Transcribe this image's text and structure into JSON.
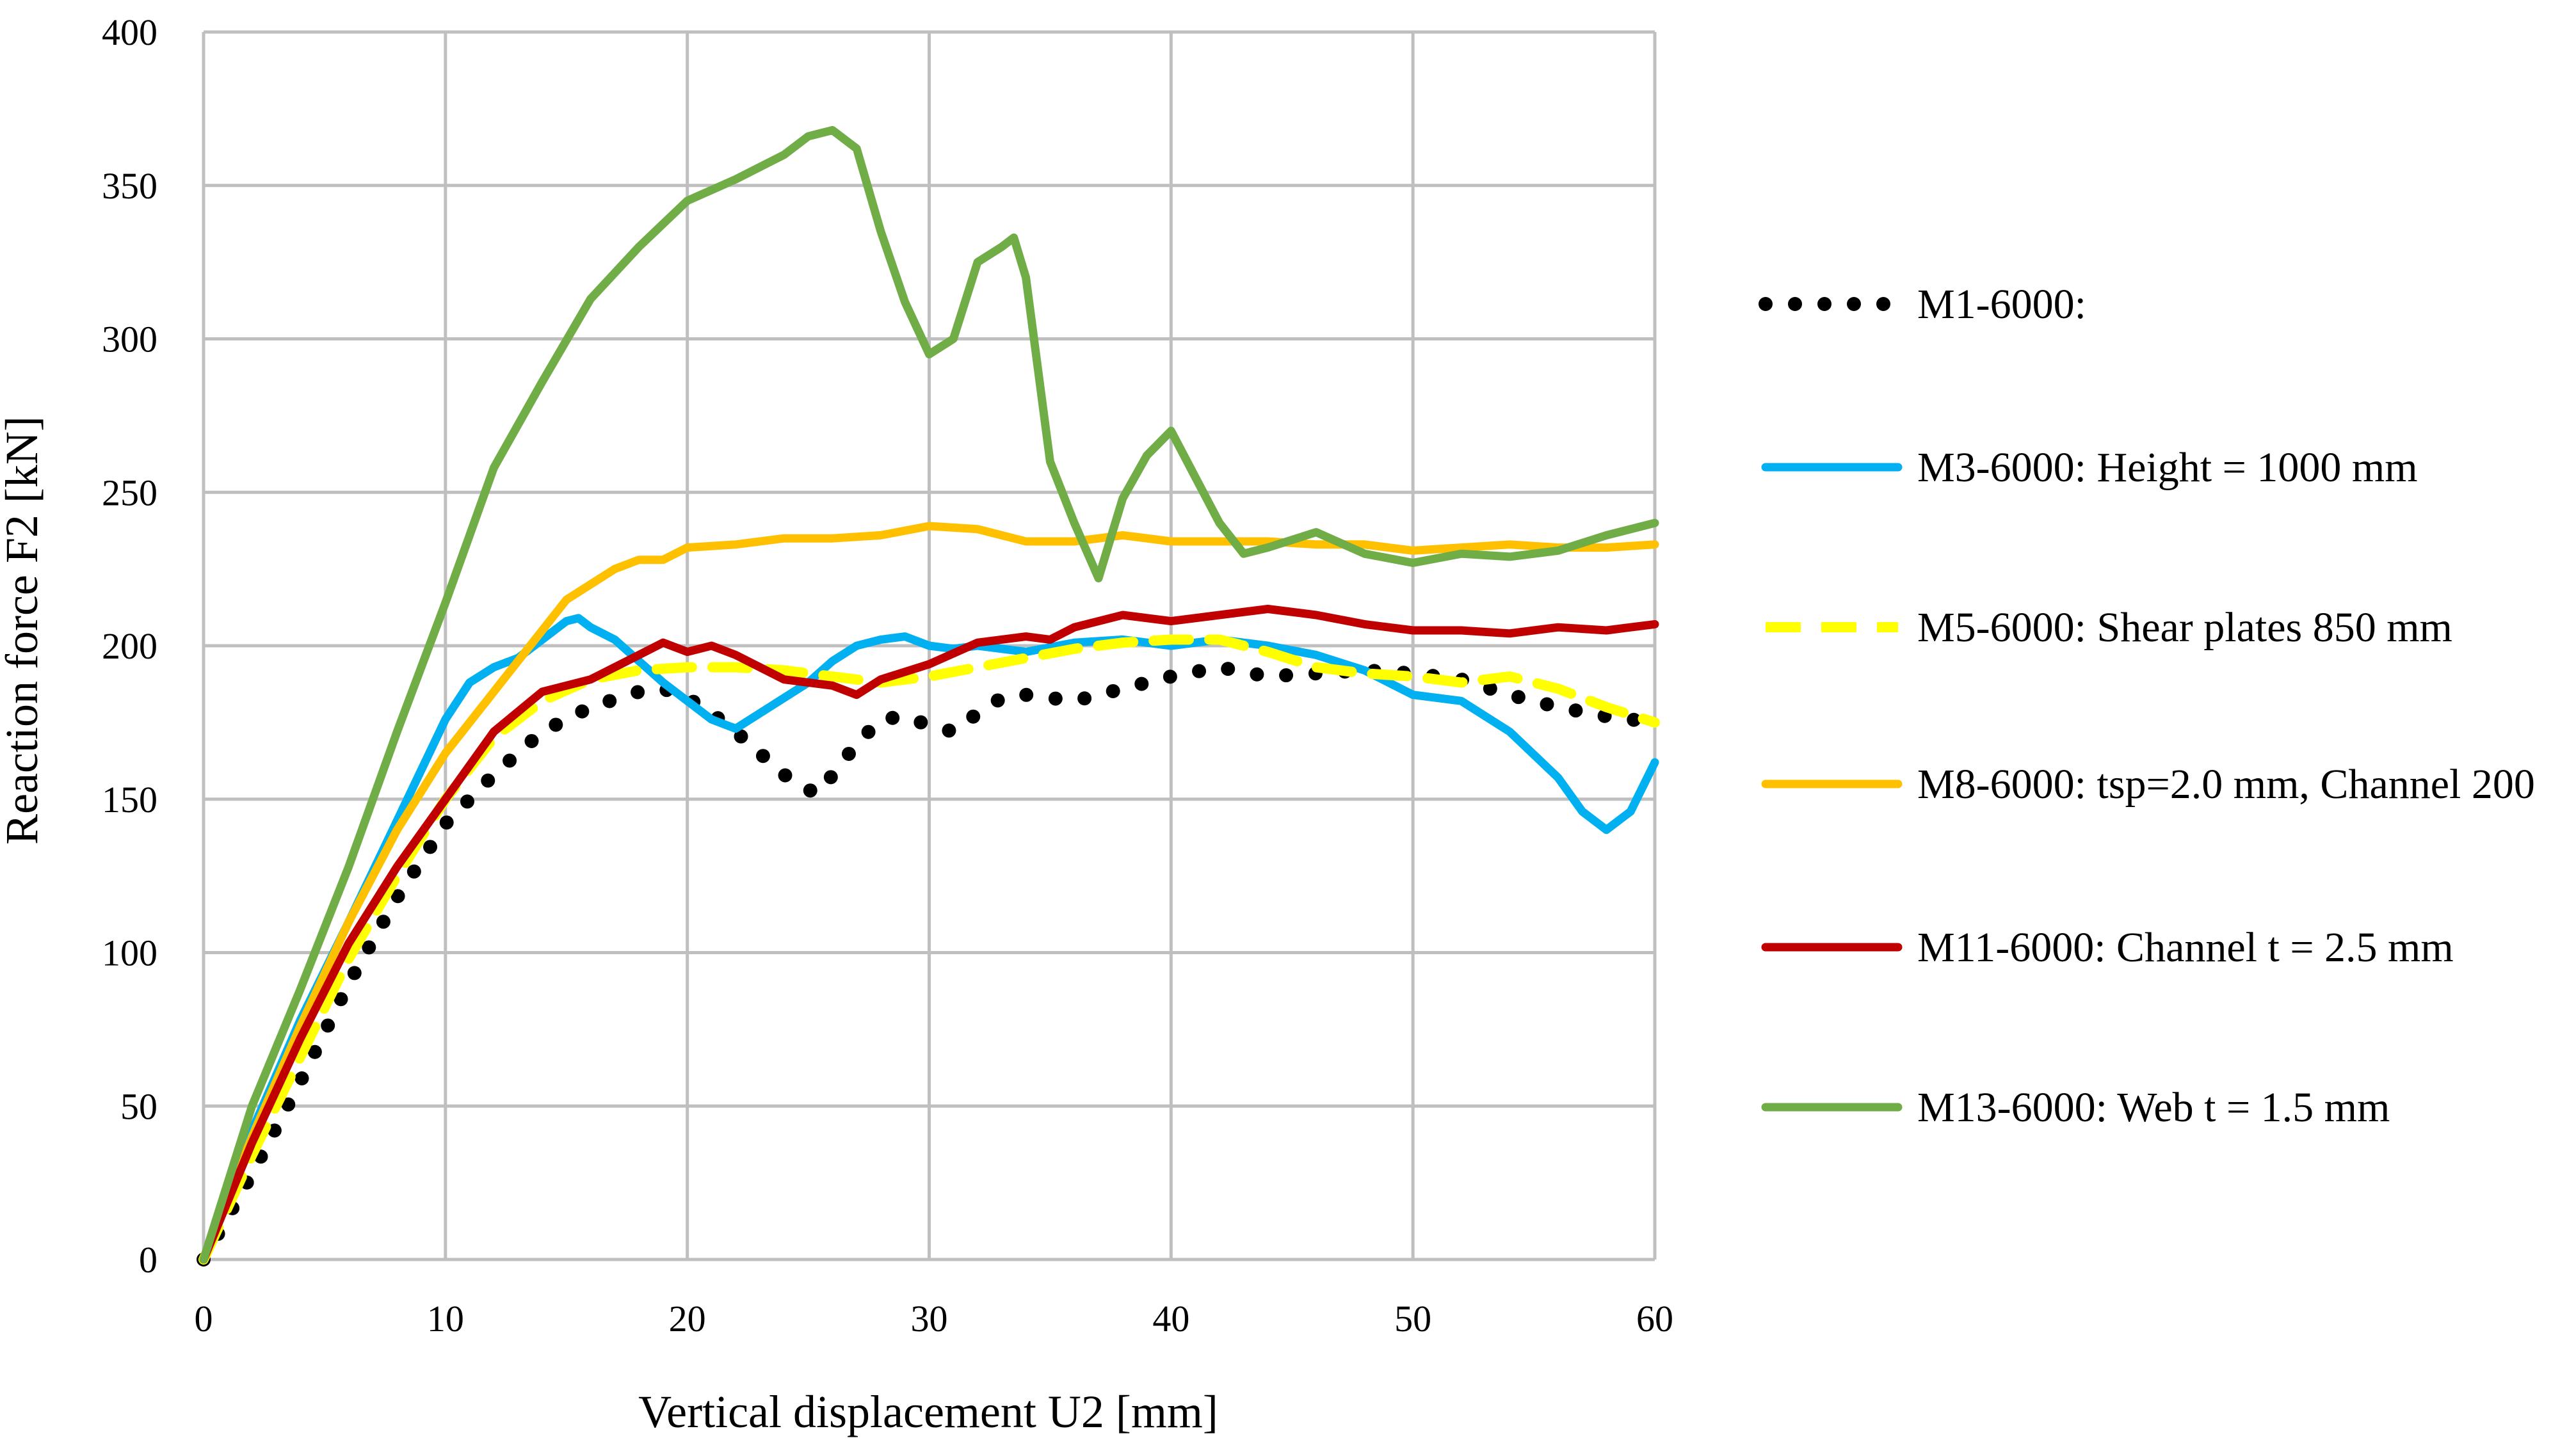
{
  "chart_data": {
    "type": "line",
    "title": "",
    "xlabel": "Vertical displacement U2 [mm]",
    "ylabel": "Reaction force F2 [kN]",
    "xlim": [
      0,
      60
    ],
    "ylim": [
      0,
      400
    ],
    "xticks": [
      0,
      10,
      20,
      30,
      40,
      50,
      60
    ],
    "yticks": [
      0,
      50,
      100,
      150,
      200,
      250,
      300,
      350,
      400
    ],
    "grid": true,
    "legend_position": "right",
    "series": [
      {
        "name": "M1-6000:",
        "color": "#000000",
        "style": "dotted",
        "x": [
          0,
          2,
          4,
          6,
          8,
          10,
          12,
          14,
          16,
          18,
          19,
          20,
          21,
          22,
          23,
          24,
          25,
          25.5,
          26,
          27,
          28,
          29,
          30,
          31,
          32,
          33,
          34,
          36,
          38,
          40,
          42,
          44,
          46,
          48,
          50,
          52,
          54,
          56,
          58,
          60
        ],
        "y": [
          0,
          28,
          58,
          90,
          118,
          142,
          158,
          172,
          180,
          185,
          186,
          183,
          178,
          172,
          165,
          158,
          153,
          152,
          158,
          168,
          176,
          177,
          174,
          172,
          178,
          183,
          184,
          182,
          186,
          190,
          193,
          190,
          191,
          192,
          191,
          189,
          184,
          180,
          177,
          175
        ]
      },
      {
        "name": "M3-6000: Height = 1000 mm",
        "color": "#00b0f0",
        "style": "solid",
        "x": [
          0,
          2,
          4,
          6,
          8,
          10,
          11,
          12,
          13,
          14,
          15,
          15.5,
          16,
          17,
          18,
          19,
          20,
          21,
          22,
          23,
          24,
          25,
          26,
          27,
          28,
          29,
          30,
          31,
          32,
          34,
          36,
          38,
          40,
          42,
          44,
          46,
          48,
          50,
          52,
          54,
          56,
          57,
          58,
          59,
          60
        ],
        "y": [
          0,
          42,
          78,
          110,
          143,
          176,
          188,
          193,
          196,
          202,
          208,
          209,
          206,
          202,
          195,
          188,
          182,
          176,
          173,
          178,
          183,
          188,
          195,
          200,
          202,
          203,
          200,
          199,
          200,
          198,
          201,
          202,
          200,
          202,
          200,
          197,
          192,
          184,
          182,
          172,
          157,
          146,
          140,
          146,
          162
        ]
      },
      {
        "name": "M5-6000: Shear plates 850 mm",
        "color": "#ffff00",
        "style": "dashed",
        "x": [
          0,
          2,
          4,
          6,
          8,
          10,
          12,
          14,
          16,
          18,
          20,
          22,
          24,
          26,
          28,
          30,
          32,
          34,
          36,
          38,
          40,
          42,
          44,
          46,
          48,
          50,
          52,
          54,
          56,
          58,
          60
        ],
        "y": [
          0,
          34,
          66,
          98,
          125,
          150,
          170,
          182,
          189,
          192,
          193,
          193,
          192,
          190,
          188,
          190,
          193,
          196,
          199,
          201,
          202,
          202,
          198,
          193,
          191,
          190,
          188,
          190,
          186,
          180,
          175
        ]
      },
      {
        "name": "M8-6000: tsp=2.0 mm, Channel 200",
        "color": "#ffc000",
        "style": "solid",
        "x": [
          0,
          2,
          4,
          6,
          8,
          10,
          12,
          14,
          15,
          16,
          17,
          18,
          19,
          20,
          22,
          24,
          26,
          28,
          30,
          32,
          34,
          36,
          38,
          40,
          42,
          44,
          46,
          48,
          50,
          52,
          54,
          56,
          58,
          60
        ],
        "y": [
          0,
          40,
          76,
          110,
          140,
          165,
          185,
          205,
          215,
          220,
          225,
          228,
          228,
          232,
          233,
          235,
          235,
          236,
          239,
          238,
          234,
          234,
          236,
          234,
          234,
          234,
          233,
          233,
          231,
          232,
          233,
          232,
          232,
          233
        ]
      },
      {
        "name": "M11-6000: Channel t = 2.5 mm",
        "color": "#c00000",
        "style": "solid",
        "x": [
          0,
          2,
          4,
          6,
          8,
          10,
          12,
          14,
          16,
          18,
          19,
          20,
          21,
          22,
          24,
          26,
          27,
          28,
          30,
          32,
          34,
          35,
          36,
          38,
          40,
          42,
          44,
          46,
          48,
          50,
          52,
          54,
          56,
          58,
          60
        ],
        "y": [
          0,
          38,
          72,
          103,
          128,
          150,
          172,
          185,
          189,
          197,
          201,
          198,
          200,
          197,
          189,
          187,
          184,
          189,
          194,
          201,
          203,
          202,
          206,
          210,
          208,
          210,
          212,
          210,
          207,
          205,
          205,
          204,
          206,
          205,
          207
        ]
      },
      {
        "name": "M13-6000: Web t = 1.5 mm",
        "color": "#70ad47",
        "style": "solid",
        "x": [
          0,
          2,
          4,
          6,
          8,
          10,
          12,
          14,
          16,
          18,
          20,
          22,
          24,
          25,
          26,
          27,
          28,
          29,
          30,
          31,
          32,
          33,
          33.5,
          34,
          35,
          36,
          37,
          38,
          39,
          40,
          41,
          42,
          43,
          44,
          46,
          48,
          50,
          52,
          54,
          56,
          58,
          59,
          60
        ],
        "y": [
          0,
          50,
          88,
          128,
          172,
          214,
          258,
          286,
          313,
          330,
          345,
          352,
          360,
          366,
          368,
          362,
          335,
          312,
          295,
          300,
          325,
          330,
          333,
          320,
          260,
          240,
          222,
          248,
          262,
          270,
          255,
          240,
          230,
          232,
          237,
          230,
          227,
          230,
          229,
          231,
          236,
          238,
          240
        ]
      }
    ]
  }
}
